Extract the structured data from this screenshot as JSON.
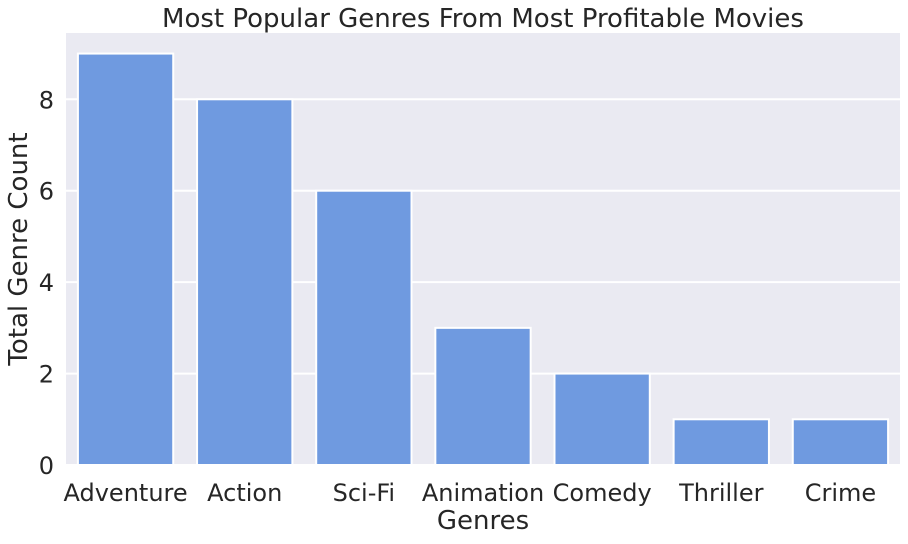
{
  "chart_data": {
    "type": "bar",
    "title": "Most Popular Genres From Most Profitable Movies",
    "xlabel": "Genres",
    "ylabel": "Total Genre Count",
    "categories": [
      "Adventure",
      "Action",
      "Sci-Fi",
      "Animation",
      "Comedy",
      "Thriller",
      "Crime"
    ],
    "values": [
      9,
      8,
      6,
      3,
      2,
      1,
      1
    ],
    "ylim": [
      0,
      9.45
    ],
    "yticks": [
      "0",
      "2",
      "4",
      "6",
      "8"
    ],
    "grid": true,
    "colors": {
      "bar": "#6f9ae0",
      "bar_edge": "#ffffff",
      "plot_background": "#eaeaf2",
      "grid": "#ffffff",
      "text": "#262626"
    }
  }
}
